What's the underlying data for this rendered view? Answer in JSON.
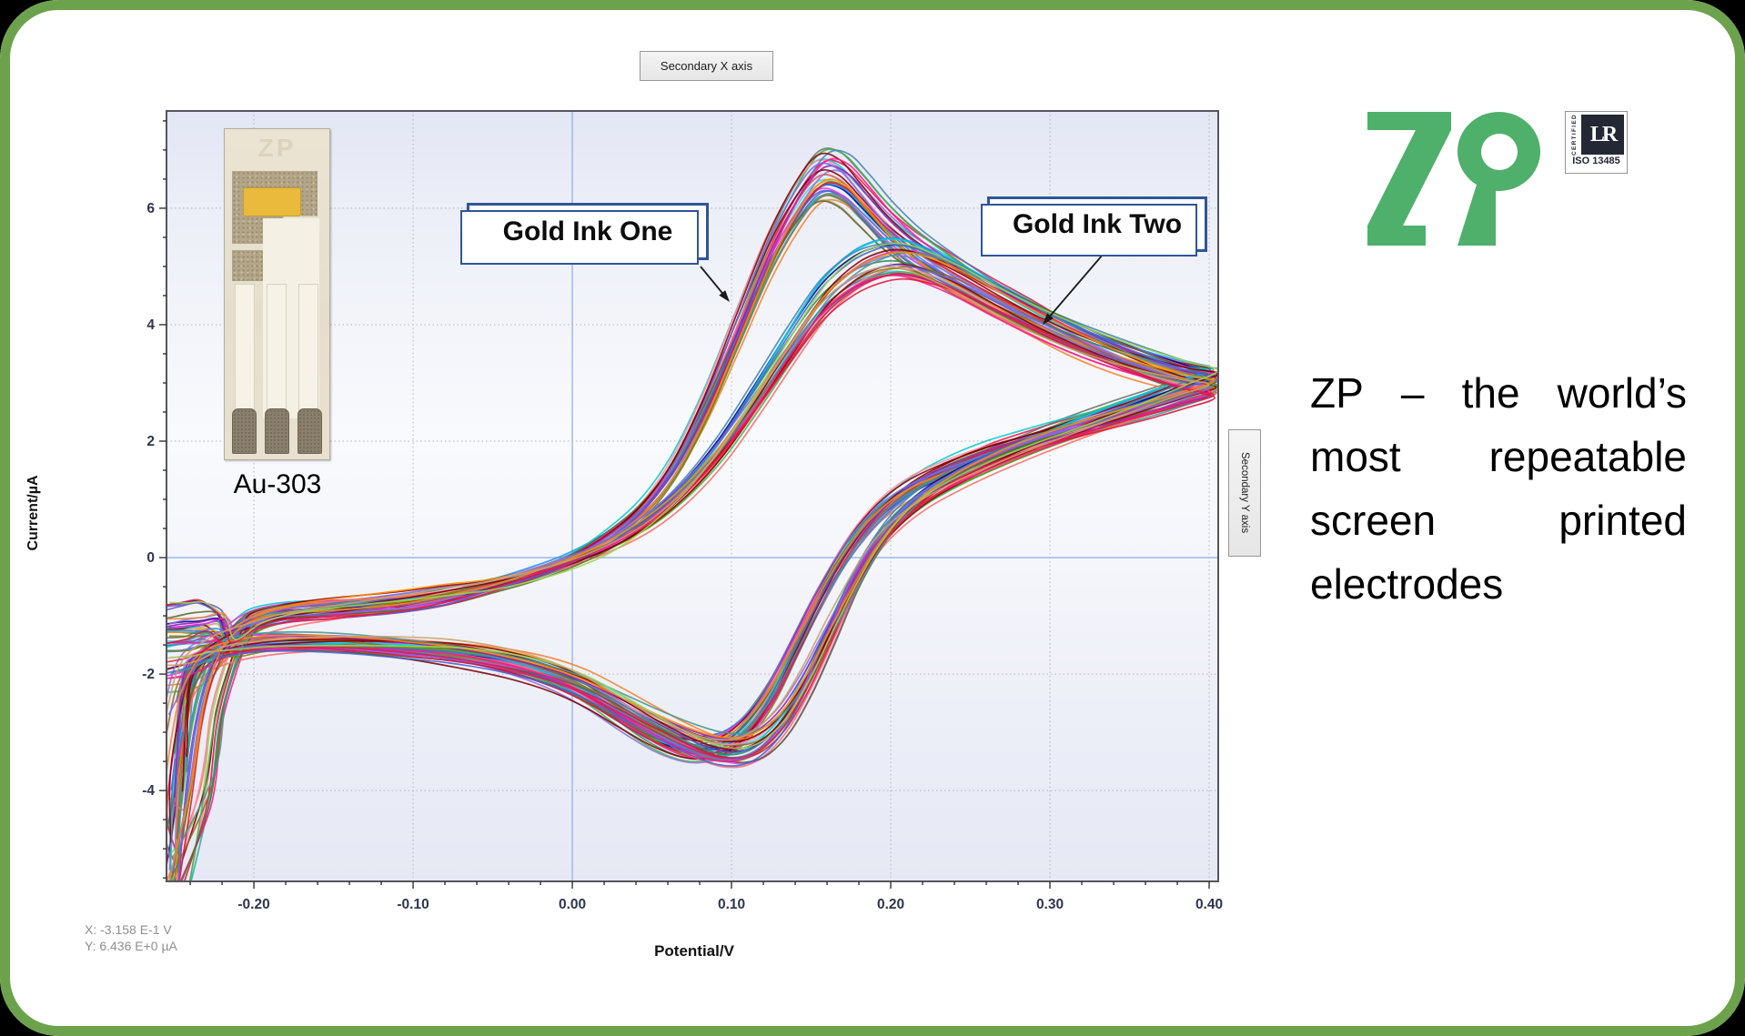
{
  "frame": {
    "outer_bg": "#000000",
    "border_color": "#6da24c",
    "panel_bg": "#ffffff"
  },
  "plot": {
    "secondary_x_label": "Secondary X axis",
    "secondary_y_label": "Secondary Y axis",
    "xlabel": "Potential/V",
    "ylabel": "Current/µA",
    "status_line1": "X: -3.158 E-1 V",
    "status_line2": "Y: 6.436 E+0 µA",
    "inset_caption": "Au-303",
    "inset_watermark": "ZP"
  },
  "callouts": [
    {
      "label": "Gold Ink One",
      "arrow": [
        770,
        293,
        802,
        332
      ]
    },
    {
      "label": "Gold Ink Two",
      "arrow": [
        1212,
        280,
        1146,
        357
      ]
    }
  ],
  "chart_data": {
    "type": "line",
    "xlabel": "Potential/V",
    "ylabel": "Current/µA",
    "xlim": [
      -0.2549,
      0.4057
    ],
    "ylim": [
      -5.56,
      7.67
    ],
    "x_ticks": [
      -0.2,
      -0.1,
      0.0,
      0.1,
      0.2,
      0.3,
      0.4
    ],
    "x_tick_labels": [
      "-0.20",
      "-0.10",
      "0.00",
      "0.10",
      "0.20",
      "0.30",
      "0.40"
    ],
    "y_ticks": [
      -4,
      -2,
      0,
      2,
      4,
      6
    ],
    "x_minor_step": 0.02,
    "y_minor_step": 0.5,
    "grid": "dotted",
    "grid_color": "#b2b2bc",
    "zero_axis_color": "#8fb4e8",
    "series": [
      {
        "name": "Gold Ink One",
        "repeats": 30,
        "peak": {
          "x": 0.157,
          "y": 6.55
        },
        "trough": {
          "x": 0.084,
          "y": -3.32
        },
        "right_tip": {
          "x": 0.403,
          "y": 3.02
        },
        "loop": [
          [
            -0.249,
            -6.5
          ],
          [
            -0.244,
            -4.2
          ],
          [
            -0.237,
            -2.8
          ],
          [
            -0.228,
            -1.9
          ],
          [
            -0.215,
            -1.35
          ],
          [
            -0.2,
            -1.05
          ],
          [
            -0.18,
            -0.92
          ],
          [
            -0.155,
            -0.85
          ],
          [
            -0.13,
            -0.8
          ],
          [
            -0.105,
            -0.73
          ],
          [
            -0.08,
            -0.62
          ],
          [
            -0.055,
            -0.48
          ],
          [
            -0.03,
            -0.3
          ],
          [
            -0.005,
            -0.06
          ],
          [
            0.02,
            0.32
          ],
          [
            0.045,
            0.85
          ],
          [
            0.065,
            1.55
          ],
          [
            0.085,
            2.6
          ],
          [
            0.105,
            3.9
          ],
          [
            0.125,
            5.2
          ],
          [
            0.143,
            6.1
          ],
          [
            0.157,
            6.55
          ],
          [
            0.17,
            6.5
          ],
          [
            0.183,
            6.15
          ],
          [
            0.198,
            5.7
          ],
          [
            0.215,
            5.3
          ],
          [
            0.235,
            4.95
          ],
          [
            0.26,
            4.55
          ],
          [
            0.285,
            4.2
          ],
          [
            0.31,
            3.85
          ],
          [
            0.335,
            3.55
          ],
          [
            0.36,
            3.3
          ],
          [
            0.383,
            3.12
          ],
          [
            0.403,
            3.02
          ],
          [
            0.383,
            2.82
          ],
          [
            0.36,
            2.62
          ],
          [
            0.335,
            2.42
          ],
          [
            0.31,
            2.22
          ],
          [
            0.285,
            2.0
          ],
          [
            0.26,
            1.78
          ],
          [
            0.235,
            1.5
          ],
          [
            0.215,
            1.22
          ],
          [
            0.198,
            0.88
          ],
          [
            0.182,
            0.42
          ],
          [
            0.168,
            -0.12
          ],
          [
            0.154,
            -0.8
          ],
          [
            0.14,
            -1.55
          ],
          [
            0.126,
            -2.3
          ],
          [
            0.112,
            -2.85
          ],
          [
            0.098,
            -3.2
          ],
          [
            0.084,
            -3.32
          ],
          [
            0.068,
            -3.28
          ],
          [
            0.05,
            -3.08
          ],
          [
            0.03,
            -2.75
          ],
          [
            0.01,
            -2.4
          ],
          [
            -0.012,
            -2.1
          ],
          [
            -0.04,
            -1.85
          ],
          [
            -0.07,
            -1.68
          ],
          [
            -0.1,
            -1.56
          ],
          [
            -0.13,
            -1.5
          ],
          [
            -0.16,
            -1.46
          ],
          [
            -0.19,
            -1.46
          ],
          [
            -0.213,
            -1.52
          ],
          [
            -0.23,
            -1.68
          ],
          [
            -0.241,
            -2.1
          ],
          [
            -0.247,
            -3.0
          ]
        ]
      },
      {
        "name": "Gold Ink Two",
        "repeats": 28,
        "peak": {
          "x": 0.205,
          "y": 5.1
        },
        "trough": {
          "x": 0.106,
          "y": -3.32
        },
        "right_tip": {
          "x": 0.403,
          "y": 2.98
        },
        "loop": [
          [
            -0.248,
            -6.3
          ],
          [
            -0.243,
            -4.0
          ],
          [
            -0.236,
            -2.7
          ],
          [
            -0.227,
            -1.85
          ],
          [
            -0.214,
            -1.4
          ],
          [
            -0.198,
            -1.15
          ],
          [
            -0.178,
            -1.02
          ],
          [
            -0.153,
            -0.95
          ],
          [
            -0.128,
            -0.88
          ],
          [
            -0.103,
            -0.8
          ],
          [
            -0.078,
            -0.68
          ],
          [
            -0.053,
            -0.52
          ],
          [
            -0.028,
            -0.33
          ],
          [
            -0.003,
            -0.1
          ],
          [
            0.022,
            0.2
          ],
          [
            0.047,
            0.62
          ],
          [
            0.07,
            1.15
          ],
          [
            0.093,
            1.85
          ],
          [
            0.115,
            2.7
          ],
          [
            0.137,
            3.6
          ],
          [
            0.158,
            4.4
          ],
          [
            0.177,
            4.85
          ],
          [
            0.193,
            5.05
          ],
          [
            0.207,
            5.1
          ],
          [
            0.222,
            5.0
          ],
          [
            0.242,
            4.78
          ],
          [
            0.265,
            4.45
          ],
          [
            0.29,
            4.1
          ],
          [
            0.315,
            3.78
          ],
          [
            0.34,
            3.5
          ],
          [
            0.363,
            3.28
          ],
          [
            0.385,
            3.1
          ],
          [
            0.403,
            2.98
          ],
          [
            0.385,
            2.8
          ],
          [
            0.363,
            2.6
          ],
          [
            0.34,
            2.4
          ],
          [
            0.315,
            2.18
          ],
          [
            0.29,
            1.95
          ],
          [
            0.265,
            1.68
          ],
          [
            0.242,
            1.38
          ],
          [
            0.222,
            1.05
          ],
          [
            0.205,
            0.65
          ],
          [
            0.19,
            0.15
          ],
          [
            0.176,
            -0.5
          ],
          [
            0.162,
            -1.3
          ],
          [
            0.148,
            -2.1
          ],
          [
            0.134,
            -2.75
          ],
          [
            0.12,
            -3.15
          ],
          [
            0.106,
            -3.32
          ],
          [
            0.09,
            -3.3
          ],
          [
            0.072,
            -3.12
          ],
          [
            0.052,
            -2.85
          ],
          [
            0.03,
            -2.52
          ],
          [
            0.008,
            -2.2
          ],
          [
            -0.016,
            -1.95
          ],
          [
            -0.045,
            -1.75
          ],
          [
            -0.075,
            -1.62
          ],
          [
            -0.105,
            -1.55
          ],
          [
            -0.135,
            -1.5
          ],
          [
            -0.165,
            -1.48
          ],
          [
            -0.193,
            -1.5
          ],
          [
            -0.215,
            -1.58
          ],
          [
            -0.231,
            -1.75
          ],
          [
            -0.242,
            -2.2
          ],
          [
            -0.248,
            -3.1
          ]
        ]
      }
    ],
    "palette": [
      "#e6194b",
      "#3cb44b",
      "#4363d8",
      "#f58231",
      "#911eb4",
      "#42d4f4",
      "#f032e6",
      "#97d84c",
      "#fa8ea0",
      "#469990",
      "#9a6324",
      "#800000",
      "#000080",
      "#808000",
      "#c9a06a",
      "#ff6b6b",
      "#7b68ee",
      "#2e8b57",
      "#ff1493",
      "#1e90ff",
      "#8b0000",
      "#20b2aa",
      "#9370db",
      "#ff8c00",
      "#6a5acd",
      "#dc143c",
      "#00ced1",
      "#556b2f",
      "#707070",
      "#4682b4"
    ]
  },
  "branding": {
    "logo_text": "ZP",
    "logo_color": "#4fb06c",
    "badge": {
      "vertical_label": "CERTIFIED",
      "mark": "LR",
      "standard": "ISO 13485"
    },
    "tagline_lines": [
      [
        "ZP",
        "–",
        "the",
        "world’s"
      ],
      [
        "most",
        "repeatable"
      ],
      [
        "screen",
        "printed"
      ],
      [
        "electrodes"
      ]
    ]
  }
}
